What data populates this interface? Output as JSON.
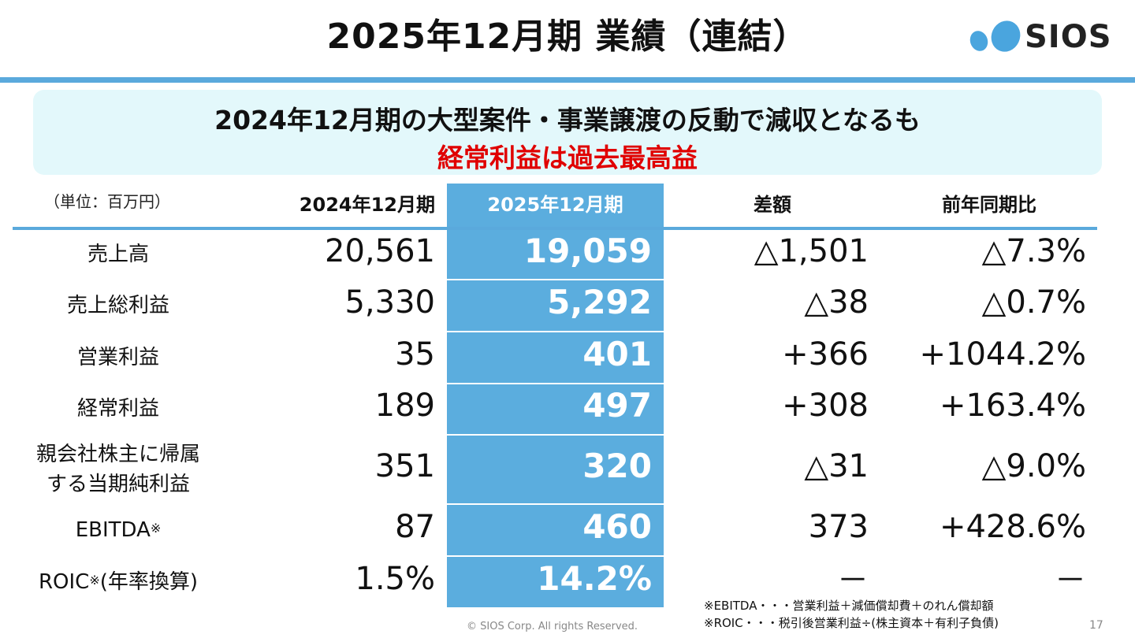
{
  "slide": {
    "title": "2025年12月期 業績（連結）",
    "brand": "SIOS",
    "banner_line1": "2024年12月期の大型案件・事業譲渡の反動で減収となるも",
    "banner_line2": "経常利益は過去最高益"
  },
  "table": {
    "unit": "（単位：百万円）",
    "headers": {
      "prev": "2024年12月期",
      "curr": "2025年12月期",
      "diff": "差額",
      "yoy": "前年同期比"
    },
    "rows": [
      {
        "label": "売上高",
        "prev": "20,561",
        "curr": "19,059",
        "diff": "△1,501",
        "yoy": "△7.3%"
      },
      {
        "label": "売上総利益",
        "prev": "5,330",
        "curr": "5,292",
        "diff": "△38",
        "yoy": "△0.7%"
      },
      {
        "label": "営業利益",
        "prev": "35",
        "curr": "401",
        "diff": "+366",
        "yoy": "+1044.2%"
      },
      {
        "label": "経常利益",
        "prev": "189",
        "curr": "497",
        "diff": "+308",
        "yoy": "+163.4%"
      },
      {
        "label_line1": "親会社株主に帰属",
        "label_line2": "する当期純利益",
        "prev": "351",
        "curr": "320",
        "diff": "△31",
        "yoy": "△9.0%"
      },
      {
        "label": "EBITDA",
        "label_mark": "※",
        "prev": "87",
        "curr": "460",
        "diff": "373",
        "yoy": "+428.6%"
      },
      {
        "label_pre": "ROIC",
        "label_mark": "※",
        "label_post": "(年率換算)",
        "prev": "1.5%",
        "curr": "14.2%",
        "diff": "－",
        "yoy": "－"
      }
    ]
  },
  "footer": {
    "copyright": "© SIOS Corp. All rights Reserved.",
    "note1": "※EBITDA・・・営業利益＋減価償却費＋のれん償却額",
    "note2": "※ROIC・・・税引後営業利益÷(株主資本＋有利子負債)",
    "page": "17"
  },
  "colors": {
    "accent": "#5aa9dc",
    "highlight_column": "#5badde",
    "banner_bg": "#e3f8fb",
    "emphasis_red": "#e00000"
  }
}
